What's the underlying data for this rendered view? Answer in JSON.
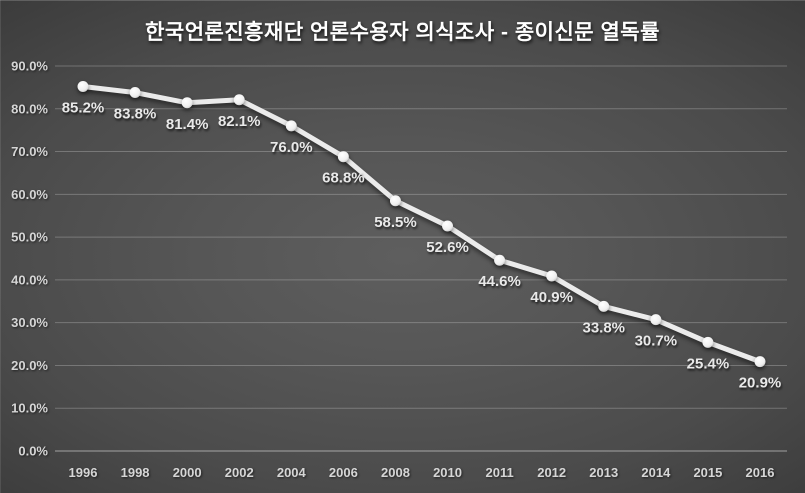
{
  "chart_data": {
    "type": "line",
    "title": "한국언론진흥재단 언론수용자 의식조사 - 종이신문 열독률",
    "categories": [
      "1996",
      "1998",
      "2000",
      "2002",
      "2004",
      "2006",
      "2008",
      "2010",
      "2011",
      "2012",
      "2013",
      "2014",
      "2015",
      "2016"
    ],
    "values": [
      85.2,
      83.8,
      81.4,
      82.1,
      76.0,
      68.8,
      58.5,
      52.6,
      44.6,
      40.9,
      33.8,
      30.7,
      25.4,
      20.9
    ],
    "data_labels": [
      "85.2%",
      "83.8%",
      "81.4%",
      "82.1%",
      "76.0%",
      "68.8%",
      "58.5%",
      "52.6%",
      "44.6%",
      "40.9%",
      "33.8%",
      "30.7%",
      "25.4%",
      "20.9%"
    ],
    "y_ticks": [
      "0.0%",
      "10.0%",
      "20.0%",
      "30.0%",
      "40.0%",
      "50.0%",
      "60.0%",
      "70.0%",
      "80.0%",
      "90.0%"
    ],
    "ylim": [
      0,
      90
    ],
    "xlabel": "",
    "ylabel": "",
    "grid": true,
    "legend": "none",
    "colors": {
      "line": "#ebebeb",
      "marker": "#f5f5f5",
      "data_label": "#e9e9e9",
      "tick_label": "#d6d6d6",
      "background_center": "#5e5e5e",
      "background_edge": "#222222"
    }
  }
}
